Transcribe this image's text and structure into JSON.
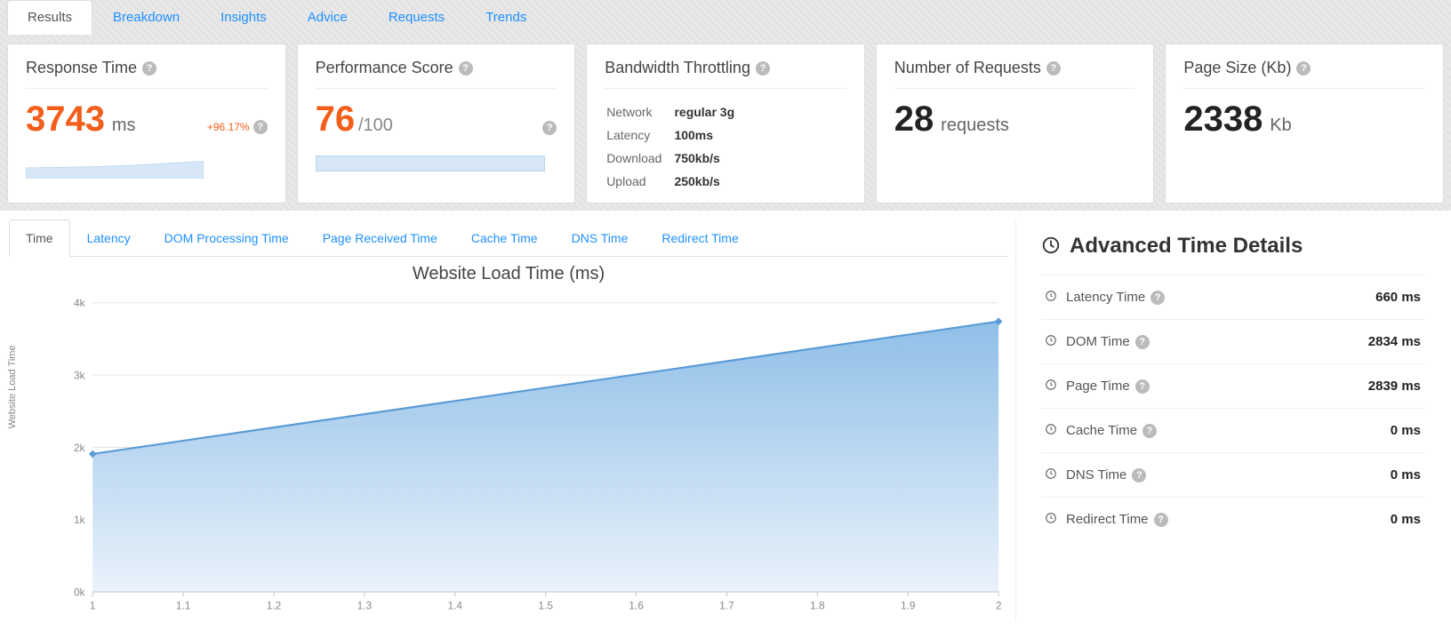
{
  "colors": {
    "accent": "#f35e1b",
    "link": "#1e90ff",
    "chart_fill_top": "#8fbfe8",
    "chart_fill_bottom": "#e6f0fa",
    "chart_line": "#5a9bd5",
    "grid": "#e0e0e0",
    "axis_text": "#888888"
  },
  "main_tabs": [
    {
      "label": "Results",
      "active": true
    },
    {
      "label": "Breakdown",
      "active": false
    },
    {
      "label": "Insights",
      "active": false
    },
    {
      "label": "Advice",
      "active": false
    },
    {
      "label": "Requests",
      "active": false
    },
    {
      "label": "Trends",
      "active": false
    }
  ],
  "cards": {
    "response_time": {
      "title": "Response Time",
      "value": "3743",
      "unit": "ms",
      "change": "+96.17%",
      "spark": {
        "type": "area",
        "points": [
          0.45,
          0.48,
          0.5,
          0.53,
          0.58,
          0.62
        ],
        "fill": "#d7e7f7",
        "stroke": "#b9d3ea"
      }
    },
    "performance": {
      "title": "Performance Score",
      "value": "76",
      "denom": "/100",
      "bar_fill": "#d7e7f7",
      "bar_border": "#b9d3ea"
    },
    "bandwidth": {
      "title": "Bandwidth Throttling",
      "rows": [
        {
          "label": "Network",
          "value": "regular 3g"
        },
        {
          "label": "Latency",
          "value": "100ms"
        },
        {
          "label": "Download",
          "value": "750kb/s"
        },
        {
          "label": "Upload",
          "value": "250kb/s"
        }
      ]
    },
    "requests": {
      "title": "Number of Requests",
      "value": "28",
      "unit": "requests"
    },
    "page_size": {
      "title": "Page Size (Kb)",
      "value": "2338",
      "unit": "Kb"
    }
  },
  "chart_tabs": [
    {
      "label": "Time",
      "active": true
    },
    {
      "label": "Latency",
      "active": false
    },
    {
      "label": "DOM Processing Time",
      "active": false
    },
    {
      "label": "Page Received Time",
      "active": false
    },
    {
      "label": "Cache Time",
      "active": false
    },
    {
      "label": "DNS Time",
      "active": false
    },
    {
      "label": "Redirect Time",
      "active": false
    }
  ],
  "chart": {
    "title": "Website Load Time (ms)",
    "type": "area",
    "y_label": "Website Load Time",
    "x_ticks": [
      "1",
      "1.1",
      "1.2",
      "1.3",
      "1.4",
      "1.5",
      "1.6",
      "1.7",
      "1.8",
      "1.9",
      "2"
    ],
    "y_ticks": [
      "0k",
      "1k",
      "2k",
      "3k",
      "4k"
    ],
    "y_min": 0,
    "y_max": 4000,
    "series": [
      {
        "x": 1.0,
        "y": 1908
      },
      {
        "x": 2.0,
        "y": 3743
      }
    ],
    "line_color": "#5a9bd5",
    "fill_top_color": "#8fbfe8",
    "fill_bottom_color": "#eaf2fb",
    "grid_color": "#e6e6e6",
    "marker_color": "#5a9bd5",
    "axis_font_size": 11
  },
  "details": {
    "title": "Advanced Time Details",
    "rows": [
      {
        "label": "Latency Time",
        "value": "660 ms"
      },
      {
        "label": "DOM Time",
        "value": "2834 ms"
      },
      {
        "label": "Page Time",
        "value": "2839 ms"
      },
      {
        "label": "Cache Time",
        "value": "0 ms"
      },
      {
        "label": "DNS Time",
        "value": "0 ms"
      },
      {
        "label": "Redirect Time",
        "value": "0 ms"
      }
    ]
  }
}
